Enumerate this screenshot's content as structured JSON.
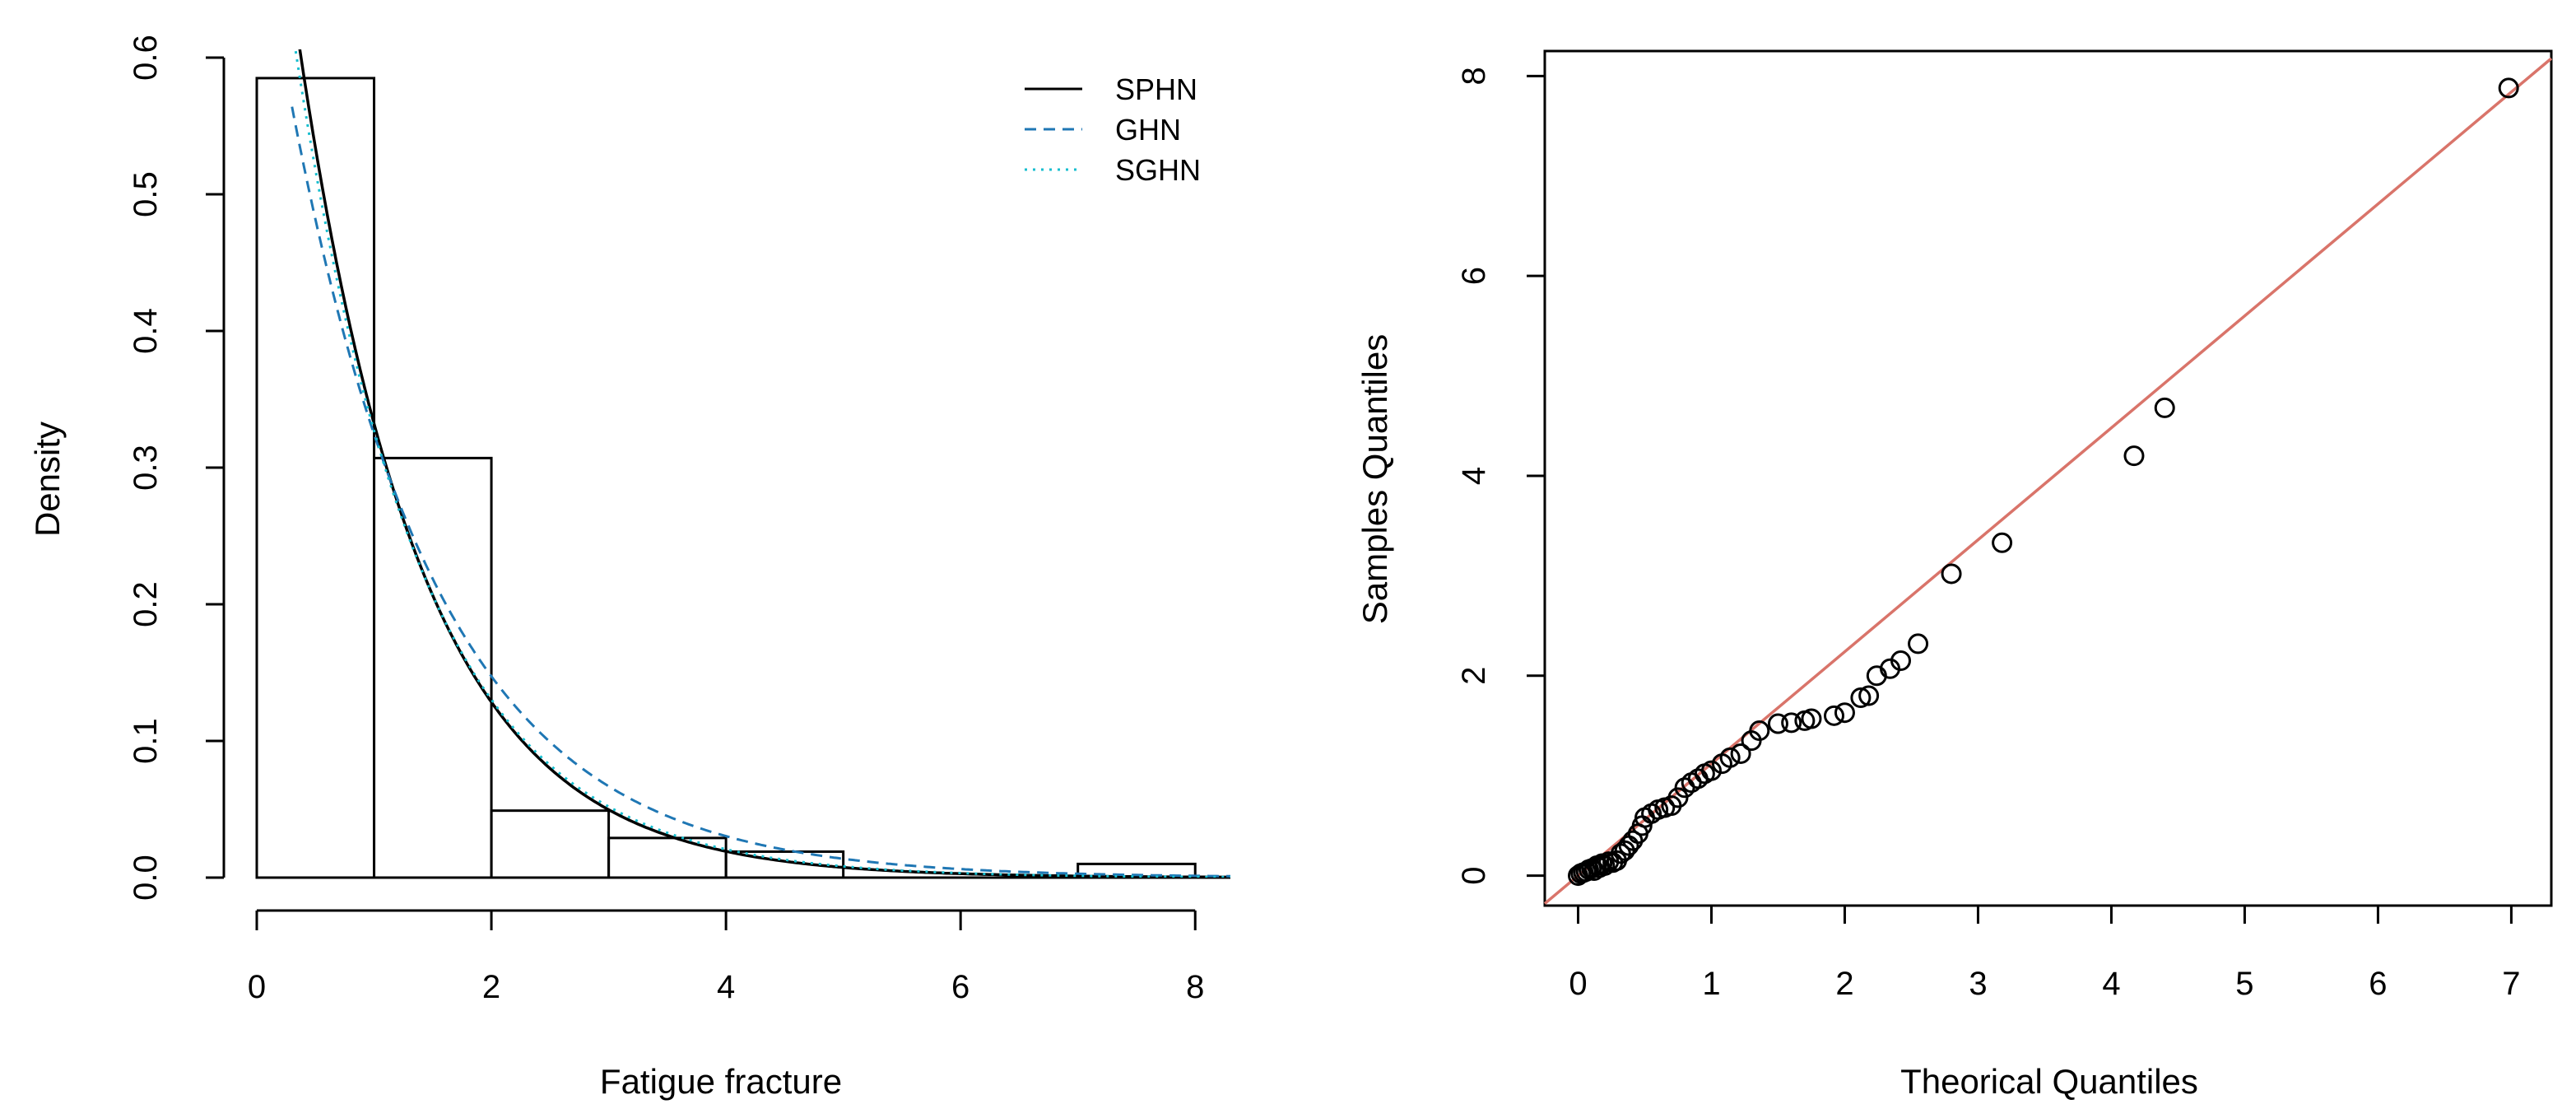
{
  "chart_data": [
    {
      "type": "histogram",
      "title": "",
      "xlabel": "Fatigue fracture",
      "ylabel": "Density",
      "xlim": [
        0,
        8.3
      ],
      "ylim": [
        0,
        0.6
      ],
      "x_ticks": [
        0,
        2,
        4,
        6,
        8
      ],
      "y_ticks": [
        0.0,
        0.1,
        0.2,
        0.3,
        0.4,
        0.5,
        0.6
      ],
      "x_tick_labels": [
        "0",
        "2",
        "4",
        "6",
        "8"
      ],
      "y_tick_labels": [
        "0.0",
        "0.1",
        "0.2",
        "0.3",
        "0.4",
        "0.5",
        "0.6"
      ],
      "bins": [
        {
          "start": 0,
          "end": 1,
          "density": 0.585
        },
        {
          "start": 1,
          "end": 2,
          "density": 0.307
        },
        {
          "start": 2,
          "end": 3,
          "density": 0.049
        },
        {
          "start": 3,
          "end": 4,
          "density": 0.029
        },
        {
          "start": 4,
          "end": 5,
          "density": 0.019
        },
        {
          "start": 5,
          "end": 6,
          "density": 0.0
        },
        {
          "start": 6,
          "end": 7,
          "density": 0.0
        },
        {
          "start": 7,
          "end": 8,
          "density": 0.01
        }
      ],
      "series": [
        {
          "name": "SPHN",
          "style": "solid",
          "color": "#000000",
          "rate": 0.95,
          "scale": 0.95
        },
        {
          "name": "GHN",
          "style": "dashed",
          "color": "#1f77b4",
          "rate": 0.79,
          "scale": 0.85
        },
        {
          "name": "SGHN",
          "style": "dotted",
          "color": "#17becf",
          "rate": 0.92,
          "scale": 0.92
        }
      ],
      "legend": {
        "position": "top-right",
        "entries": [
          "SPHN",
          "GHN",
          "SGHN"
        ]
      }
    },
    {
      "type": "scatter",
      "title": "",
      "xlabel": "Theorical Quantiles",
      "ylabel": "Samples Quantiles",
      "xlim": [
        -0.25,
        7.3
      ],
      "ylim": [
        -0.3,
        8.25
      ],
      "x_ticks": [
        0,
        1,
        2,
        3,
        4,
        5,
        6,
        7
      ],
      "y_ticks": [
        0,
        2,
        4,
        6,
        8
      ],
      "x_tick_labels": [
        "0",
        "1",
        "2",
        "3",
        "4",
        "5",
        "6",
        "7"
      ],
      "y_tick_labels": [
        "0",
        "2",
        "4",
        "6",
        "8"
      ],
      "reference_line": {
        "slope": 1.12,
        "intercept": 0,
        "color": "#d9746a"
      },
      "points": [
        [
          0.0,
          0.0
        ],
        [
          0.02,
          0.02
        ],
        [
          0.04,
          0.03
        ],
        [
          0.06,
          0.04
        ],
        [
          0.08,
          0.06
        ],
        [
          0.1,
          0.07
        ],
        [
          0.12,
          0.05
        ],
        [
          0.14,
          0.1
        ],
        [
          0.16,
          0.08
        ],
        [
          0.18,
          0.12
        ],
        [
          0.2,
          0.1
        ],
        [
          0.23,
          0.14
        ],
        [
          0.26,
          0.13
        ],
        [
          0.29,
          0.15
        ],
        [
          0.32,
          0.22
        ],
        [
          0.35,
          0.25
        ],
        [
          0.38,
          0.3
        ],
        [
          0.41,
          0.35
        ],
        [
          0.45,
          0.42
        ],
        [
          0.48,
          0.5
        ],
        [
          0.5,
          0.58
        ],
        [
          0.55,
          0.62
        ],
        [
          0.6,
          0.66
        ],
        [
          0.65,
          0.68
        ],
        [
          0.7,
          0.7
        ],
        [
          0.75,
          0.78
        ],
        [
          0.8,
          0.88
        ],
        [
          0.85,
          0.93
        ],
        [
          0.9,
          0.97
        ],
        [
          0.95,
          1.02
        ],
        [
          1.0,
          1.05
        ],
        [
          1.08,
          1.12
        ],
        [
          1.14,
          1.18
        ],
        [
          1.22,
          1.22
        ],
        [
          1.3,
          1.35
        ],
        [
          1.36,
          1.45
        ],
        [
          1.5,
          1.52
        ],
        [
          1.6,
          1.53
        ],
        [
          1.7,
          1.55
        ],
        [
          1.75,
          1.57
        ],
        [
          1.92,
          1.6
        ],
        [
          2.0,
          1.63
        ],
        [
          2.12,
          1.78
        ],
        [
          2.18,
          1.8
        ],
        [
          2.24,
          2.0
        ],
        [
          2.34,
          2.07
        ],
        [
          2.42,
          2.15
        ],
        [
          2.55,
          2.32
        ],
        [
          2.8,
          3.02
        ],
        [
          3.18,
          3.33
        ],
        [
          4.17,
          4.2
        ],
        [
          4.4,
          4.68
        ],
        [
          6.98,
          7.88
        ]
      ]
    }
  ]
}
